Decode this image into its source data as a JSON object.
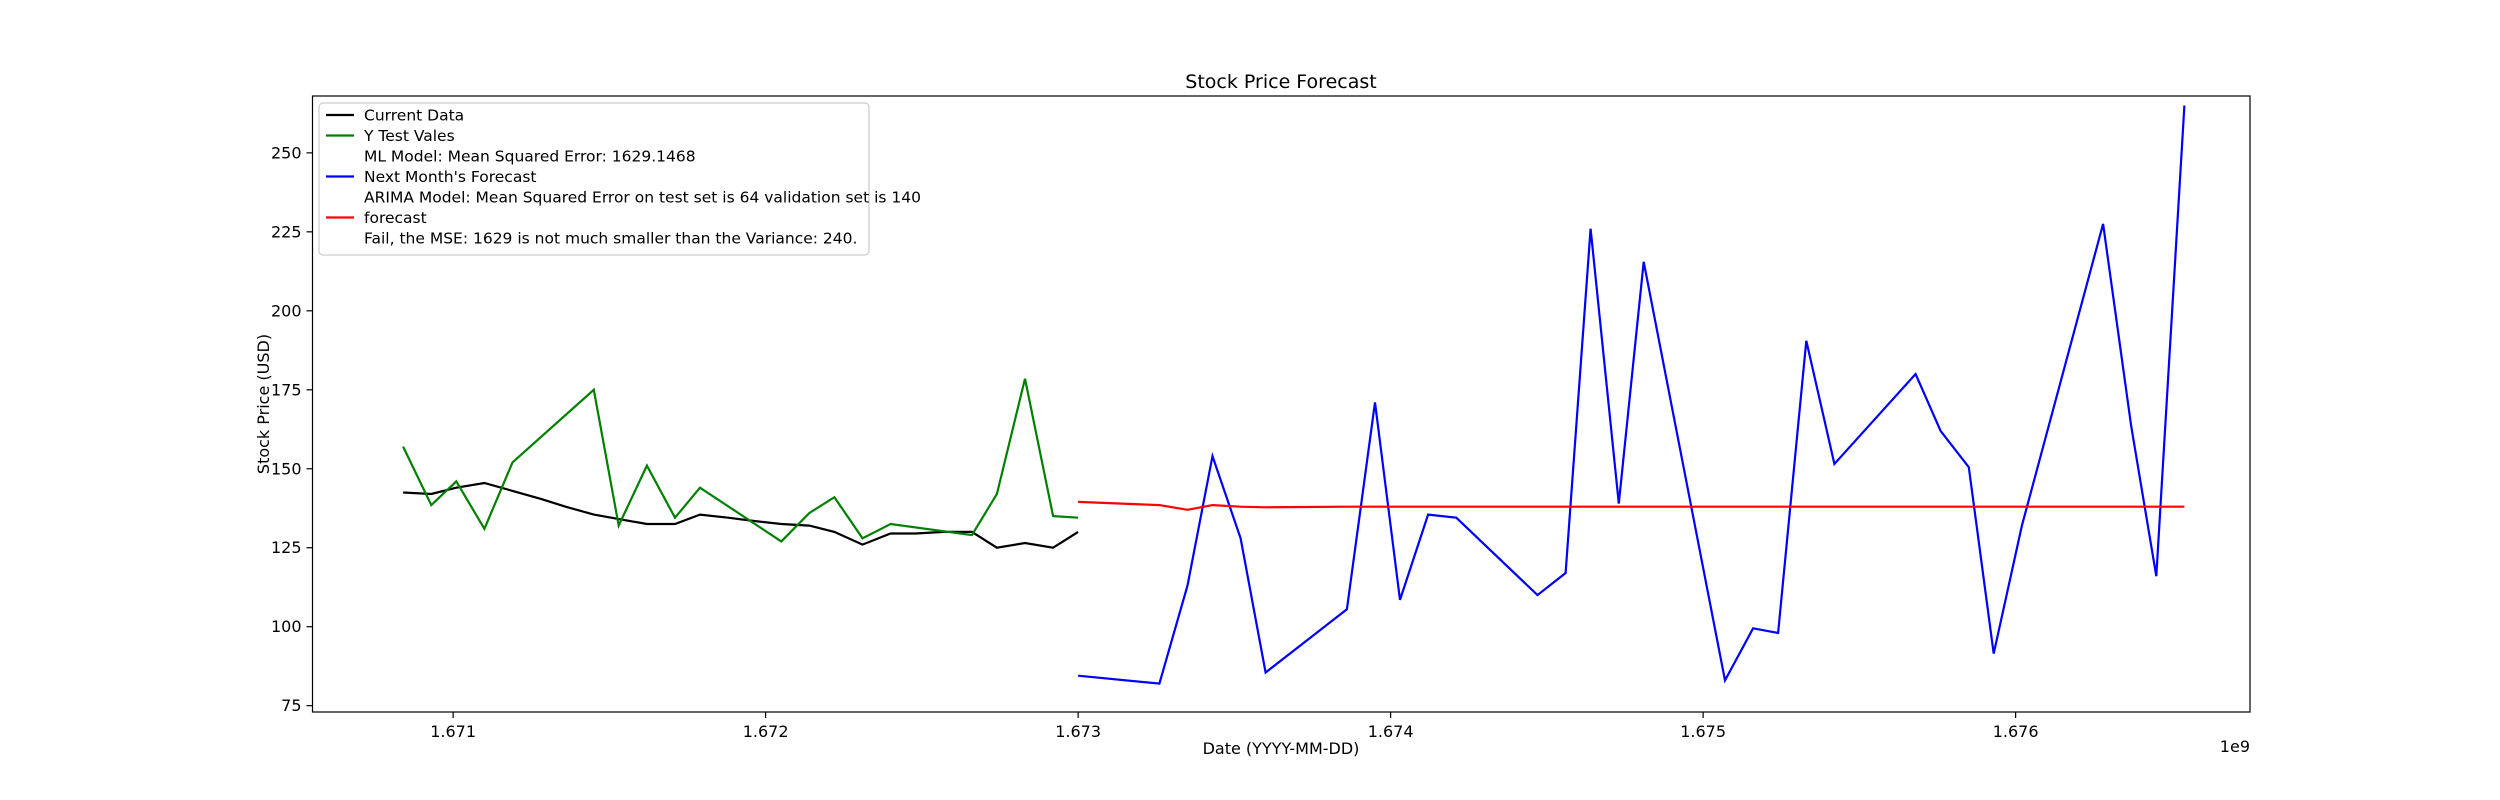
{
  "chart_data": {
    "type": "line",
    "title": "Stock Price Forecast",
    "xlabel": "Date (YYYY-MM-DD)",
    "ylabel": "Stock Price (USD)",
    "x_offset_label": "1e9",
    "xlim": [
      1.67055,
      1.67675
    ],
    "ylim": [
      73,
      268
    ],
    "xticks": [
      1.671,
      1.672,
      1.673,
      1.674,
      1.675,
      1.676
    ],
    "xtick_labels": [
      "1.671",
      "1.672",
      "1.673",
      "1.674",
      "1.675",
      "1.676"
    ],
    "yticks": [
      75,
      100,
      125,
      150,
      175,
      200,
      225,
      250
    ],
    "ytick_labels": [
      "75",
      "100",
      "125",
      "150",
      "175",
      "200",
      "225",
      "250"
    ],
    "grid": false,
    "legend_position": "upper-left",
    "legend": [
      {
        "label": "Current Data",
        "color": "#000000",
        "line": true
      },
      {
        "label": "Y Test Vales",
        "color": "#008000",
        "line": true
      },
      {
        "label": "ML Model: Mean Squared Error:  1629.1468",
        "color": "",
        "line": false
      },
      {
        "label": "Next Month's Forecast",
        "color": "#0000ff",
        "line": true
      },
      {
        "label": "ARIMA Model: Mean Squared Error on test set is 64 validation set is 140",
        "color": "",
        "line": false
      },
      {
        "label": "forecast",
        "color": "#ff0000",
        "line": true
      },
      {
        "label": "Fail, the MSE: 1629 is not much smaller than the Variance: 240.",
        "color": "",
        "line": false
      }
    ],
    "series": [
      {
        "name": "Current Data",
        "color": "#000000",
        "x": [
          1.67084,
          1.67093,
          1.67101,
          1.6711,
          1.67119,
          1.67128,
          1.67136,
          1.67145,
          1.67162,
          1.67171,
          1.67179,
          1.67188,
          1.67196,
          1.67205,
          1.67214,
          1.67222,
          1.67231,
          1.6724,
          1.67248,
          1.67257,
          1.67266,
          1.67274,
          1.67283,
          1.67292,
          1.673
        ],
        "y": [
          142.5,
          142.0,
          144.0,
          145.5,
          143.0,
          140.5,
          138.0,
          135.5,
          132.5,
          132.5,
          135.5,
          134.5,
          133.5,
          132.5,
          132.0,
          130.0,
          126.0,
          129.5,
          129.5,
          130.0,
          130.0,
          125.0,
          126.5,
          125.0,
          130.0
        ]
      },
      {
        "name": "Y Test Vales",
        "color": "#008000",
        "x": [
          1.67084,
          1.67093,
          1.67101,
          1.6711,
          1.67119,
          1.67145,
          1.67153,
          1.67162,
          1.67171,
          1.67179,
          1.67205,
          1.67214,
          1.67222,
          1.67231,
          1.6724,
          1.67266,
          1.67274,
          1.67283,
          1.67292,
          1.673
        ],
        "y": [
          157.0,
          138.5,
          146.0,
          131.0,
          152.0,
          175.0,
          132.0,
          151.0,
          134.5,
          144.0,
          127.0,
          136.0,
          141.0,
          128.0,
          132.5,
          129.0,
          142.0,
          178.5,
          135.0,
          134.5
        ]
      },
      {
        "name": "Next Month's Forecast",
        "color": "#0000ff",
        "x": [
          1.673,
          1.67326,
          1.67335,
          1.67343,
          1.67352,
          1.6736,
          1.67386,
          1.67395,
          1.67403,
          1.67412,
          1.67421,
          1.67447,
          1.67456,
          1.67464,
          1.67473,
          1.67481,
          1.67507,
          1.67516,
          1.67524,
          1.67533,
          1.67542,
          1.67568,
          1.67576,
          1.67585,
          1.67593,
          1.67602,
          1.67628,
          1.67637,
          1.67645,
          1.67654
        ],
        "y": [
          84.5,
          82.0,
          113.0,
          154.0,
          128.0,
          85.5,
          105.5,
          171.0,
          108.5,
          135.5,
          134.5,
          110.0,
          117.0,
          226.0,
          139.0,
          215.5,
          83.0,
          99.5,
          98.0,
          190.5,
          151.5,
          180.0,
          162.0,
          150.5,
          91.5,
          132.0,
          227.5,
          163.5,
          116.0,
          265.0
        ]
      },
      {
        "name": "forecast",
        "color": "#ff0000",
        "x": [
          1.673,
          1.67326,
          1.67335,
          1.67343,
          1.67352,
          1.6736,
          1.67386,
          1.67395,
          1.67403,
          1.67412,
          1.67421,
          1.67447,
          1.67456,
          1.67464,
          1.67473,
          1.67481,
          1.67507,
          1.67516,
          1.67524,
          1.67533,
          1.67542,
          1.67568,
          1.67576,
          1.67585,
          1.67593,
          1.67602,
          1.67628,
          1.67637,
          1.67645,
          1.67654
        ],
        "y": [
          139.5,
          138.5,
          137.0,
          138.5,
          138.0,
          137.8,
          138.0,
          138.0,
          138.0,
          138.0,
          138.0,
          138.0,
          138.0,
          138.0,
          138.0,
          138.0,
          138.0,
          138.0,
          138.0,
          138.0,
          138.0,
          138.0,
          138.0,
          138.0,
          138.0,
          138.0,
          138.0,
          138.0,
          138.0,
          138.0
        ]
      }
    ]
  }
}
